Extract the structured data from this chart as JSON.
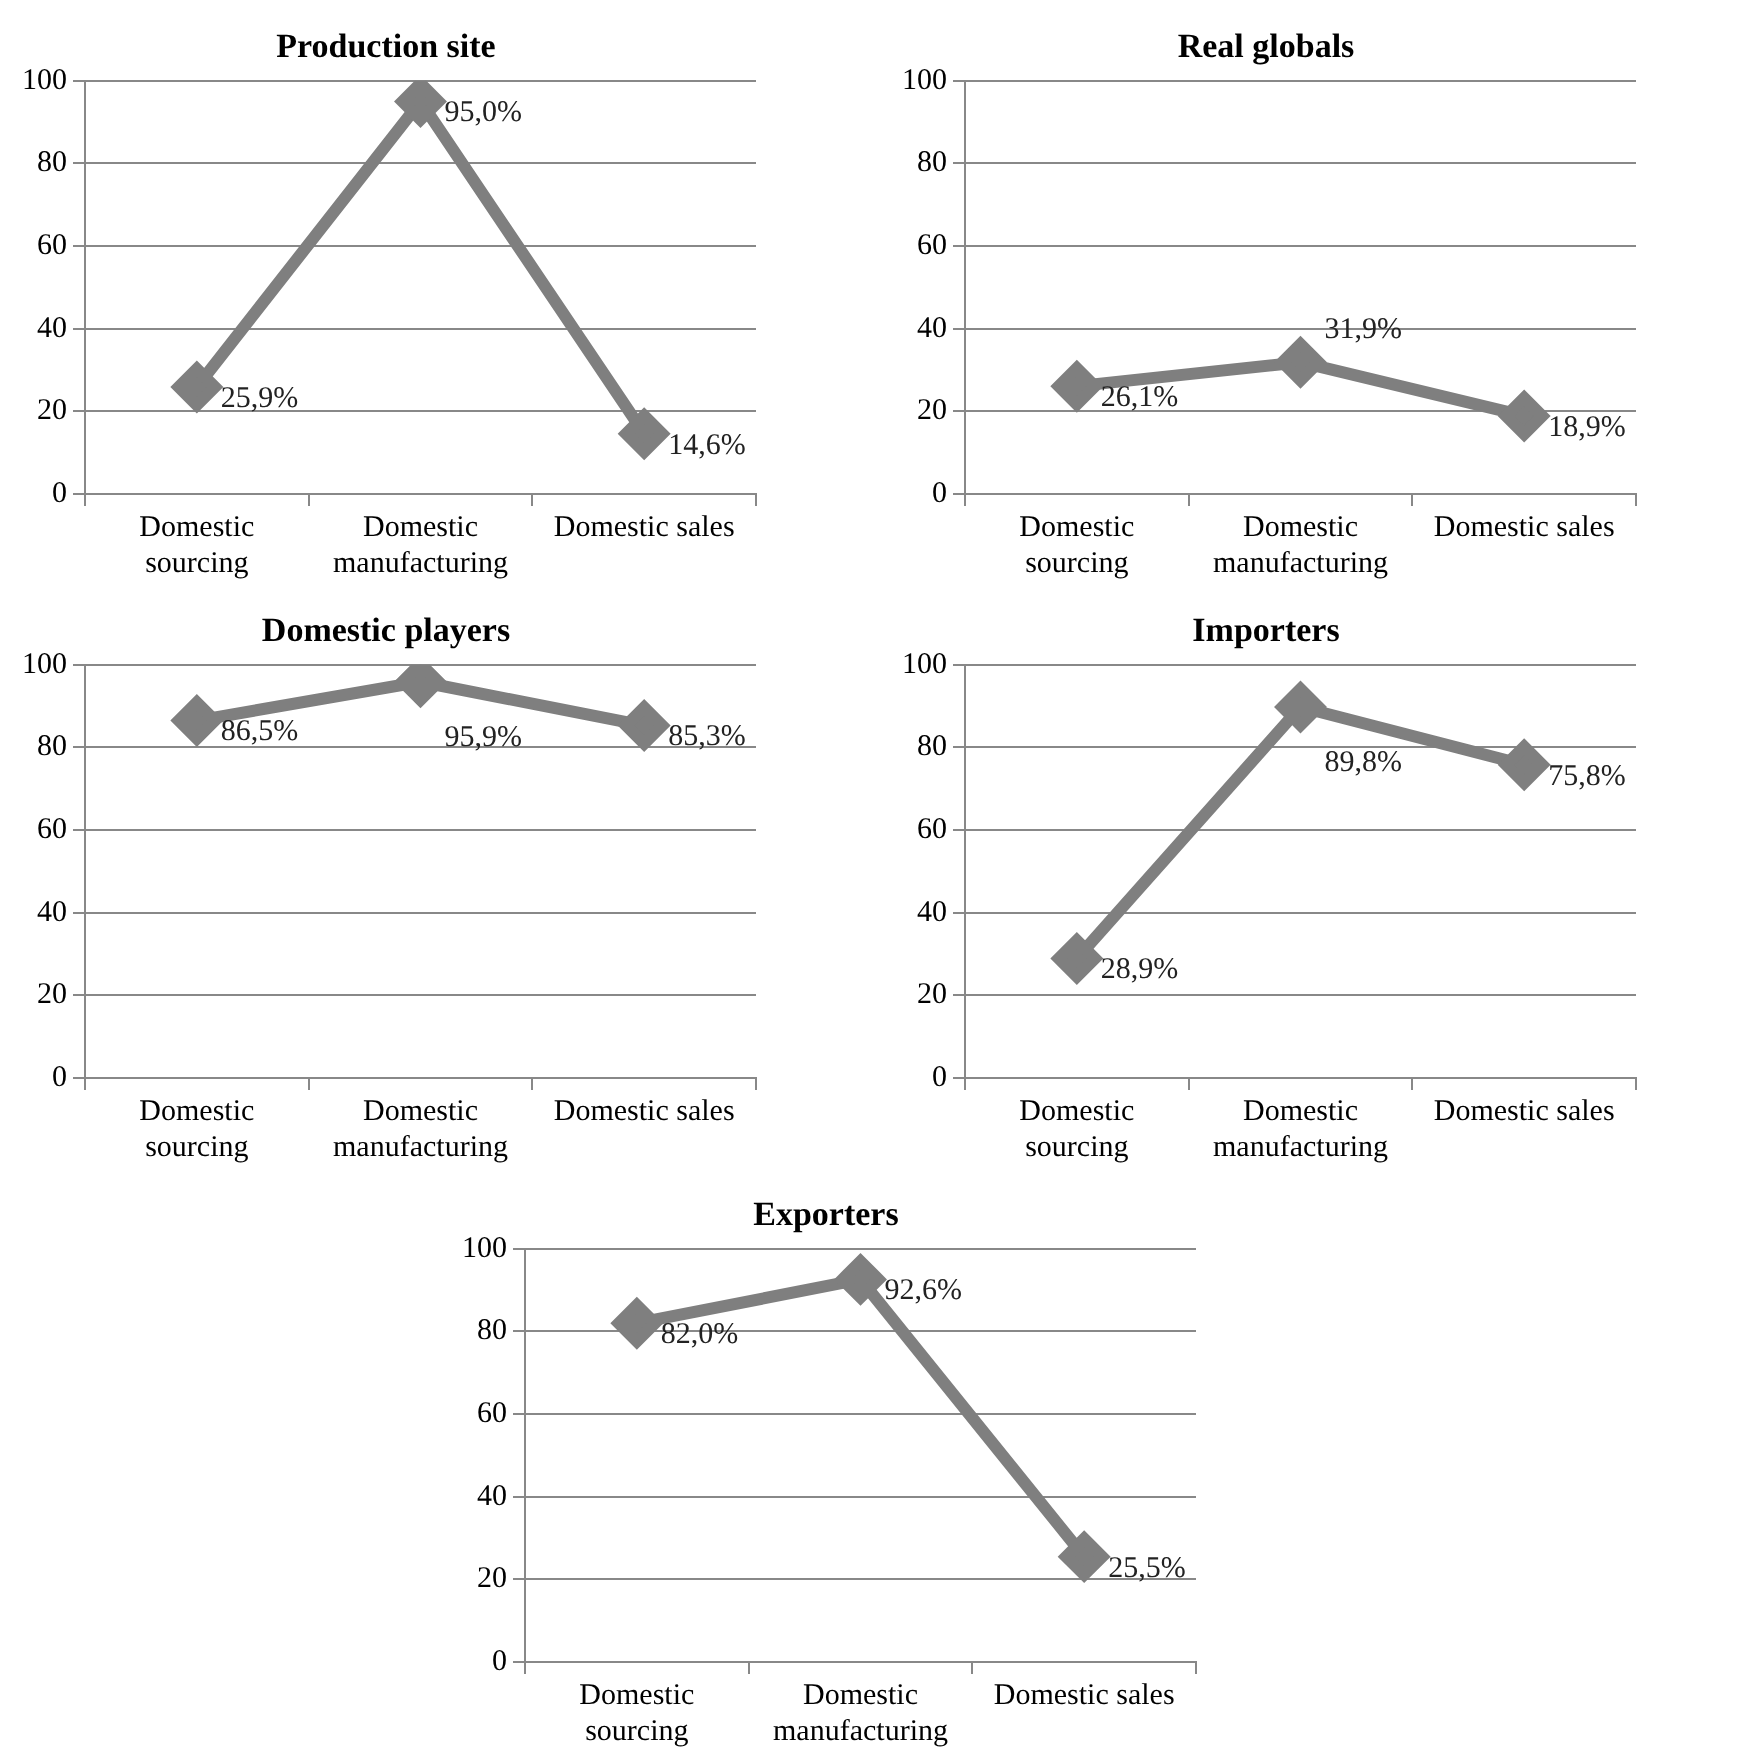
{
  "chart_data": [
    {
      "type": "line",
      "title": "Production site",
      "categories": [
        "Domestic sourcing",
        "Domestic manufacturing",
        "Domestic sales"
      ],
      "series": [
        {
          "color": "#7f7f7f",
          "values": [
            25.9,
            95.0,
            14.6
          ],
          "value_labels": [
            "25,9%",
            "95,0%",
            "14,6%"
          ]
        }
      ],
      "ylim": [
        0,
        100
      ],
      "yticks": [
        0,
        20,
        40,
        60,
        80,
        100
      ],
      "grid": "y",
      "marker": "diamond",
      "line_style": "solid"
    },
    {
      "type": "line",
      "title": "Real globals",
      "categories": [
        "Domestic sourcing",
        "Domestic manufacturing",
        "Domestic sales"
      ],
      "series": [
        {
          "color": "#7f7f7f",
          "values": [
            26.1,
            31.9,
            18.9
          ],
          "value_labels": [
            "26,1%",
            "31,9%",
            "18,9%"
          ]
        }
      ],
      "ylim": [
        0,
        100
      ],
      "yticks": [
        0,
        20,
        40,
        60,
        80,
        100
      ],
      "grid": "y",
      "marker": "diamond",
      "line_style": "solid"
    },
    {
      "type": "line",
      "title": "Domestic players",
      "categories": [
        "Domestic sourcing",
        "Domestic manufacturing",
        "Domestic sales"
      ],
      "series": [
        {
          "color": "#7f7f7f",
          "values": [
            86.5,
            95.9,
            85.3
          ],
          "value_labels": [
            "86,5%",
            "95,9%",
            "85,3%"
          ]
        }
      ],
      "ylim": [
        0,
        100
      ],
      "yticks": [
        0,
        20,
        40,
        60,
        80,
        100
      ],
      "grid": "y",
      "marker": "diamond",
      "line_style": "solid"
    },
    {
      "type": "line",
      "title": "Importers",
      "categories": [
        "Domestic sourcing",
        "Domestic manufacturing",
        "Domestic sales"
      ],
      "series": [
        {
          "color": "#7f7f7f",
          "values": [
            28.9,
            89.8,
            75.8
          ],
          "value_labels": [
            "28,9%",
            "89,8%",
            "75,8%"
          ]
        }
      ],
      "ylim": [
        0,
        100
      ],
      "yticks": [
        0,
        20,
        40,
        60,
        80,
        100
      ],
      "grid": "y",
      "marker": "diamond",
      "line_style": "solid"
    },
    {
      "type": "line",
      "title": "Exporters",
      "categories": [
        "Domestic sourcing",
        "Domestic manufacturing",
        "Domestic sales"
      ],
      "series": [
        {
          "color": "#7f7f7f",
          "values": [
            82.0,
            92.6,
            25.5
          ],
          "value_labels": [
            "82,0%",
            "92,6%",
            "25,5%"
          ]
        }
      ],
      "ylim": [
        0,
        100
      ],
      "yticks": [
        0,
        20,
        40,
        60,
        80,
        100
      ],
      "grid": "y",
      "marker": "diamond",
      "line_style": "solid"
    }
  ]
}
